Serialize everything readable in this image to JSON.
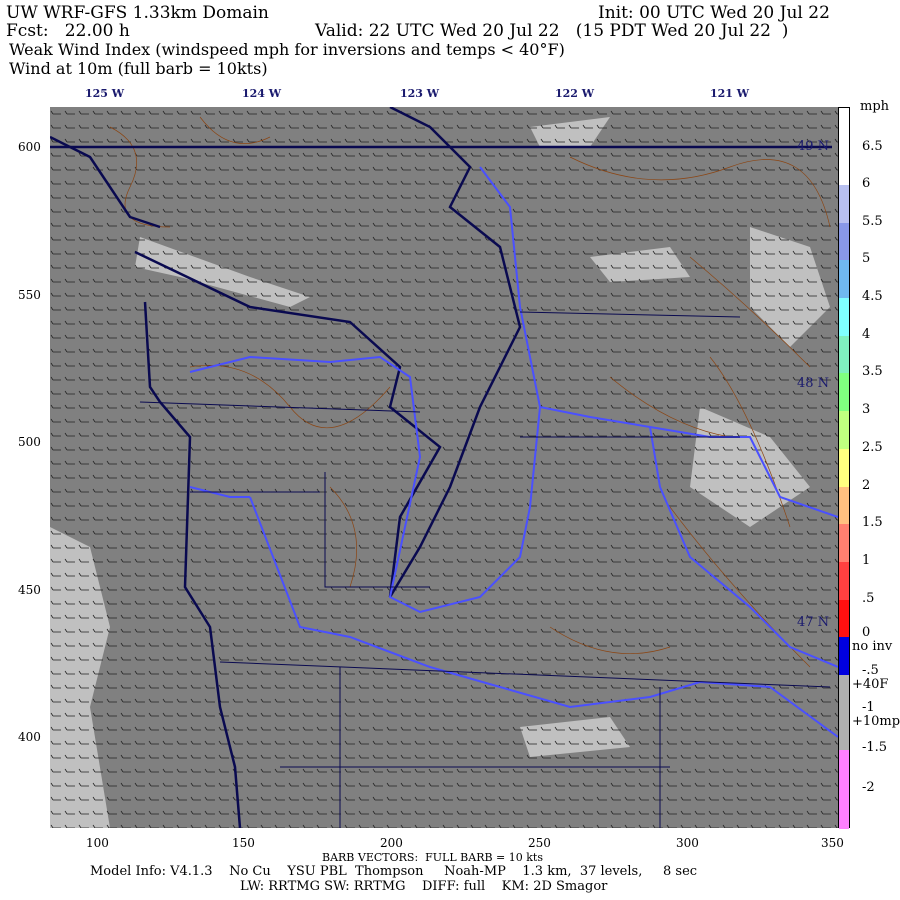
{
  "header": {
    "title": "UW WRF-GFS 1.33km Domain",
    "init": "Init: 00 UTC Wed 20 Jul 22",
    "fcst": "Fcst:   22.00 h",
    "valid": "Valid: 22 UTC Wed 20 Jul 22   (15 PDT Wed 20 Jul 22  )",
    "field": "Weak Wind Index (windspeed mph for inversions and temps < 40°F)",
    "wind": "Wind at 10m (full barb = 10kts)"
  },
  "longitude_labels": [
    "125 W",
    "124 W",
    "123 W",
    "122 W",
    "121 W"
  ],
  "latitude_labels": [
    "49 N",
    "48 N",
    "47 N"
  ],
  "y_axis_labels": [
    "600",
    "550",
    "500",
    "450",
    "400"
  ],
  "x_axis_labels": [
    "100",
    "150",
    "200",
    "250",
    "300",
    "350"
  ],
  "colorbar": {
    "unit": "mph",
    "labels": [
      "6.5",
      "6",
      "5.5",
      "5",
      "4.5",
      "4",
      "3.5",
      "3",
      "2.5",
      "2",
      "1.5",
      "1",
      ".5",
      "0",
      "no inv",
      "-.5",
      "+40F",
      "-1",
      "+10mph",
      "-1.5",
      "-2"
    ],
    "colors": [
      "#ffffff",
      "#ffffff",
      "#b8c0f0",
      "#8898e8",
      "#70b8f0",
      "#80ffff",
      "#80f0c0",
      "#80ff80",
      "#c0ff80",
      "#ffff80",
      "#ffc080",
      "#ff8070",
      "#ff4040",
      "#ff1010",
      "#0000e0",
      "#b0b0b0",
      "#b0b0b0",
      "#ff80ff",
      "#ff80ff"
    ]
  },
  "map_colors": {
    "background": "#808080",
    "light": "#c0c0c0",
    "terrain_contours": "#8b4513",
    "coastline": "#0a0a50",
    "boundaries": "#4a50ff"
  },
  "footer": {
    "barb": "BARB VECTORS:  FULL BARB = 10 kts",
    "model": "Model Info: V4.1.3    No Cu    YSU PBL  Thompson     Noah-MP    1.3 km,  37 levels,     8 sec",
    "physics": "LW: RRTMG SW: RRTMG    DIFF: full    KM: 2D Smagor"
  }
}
